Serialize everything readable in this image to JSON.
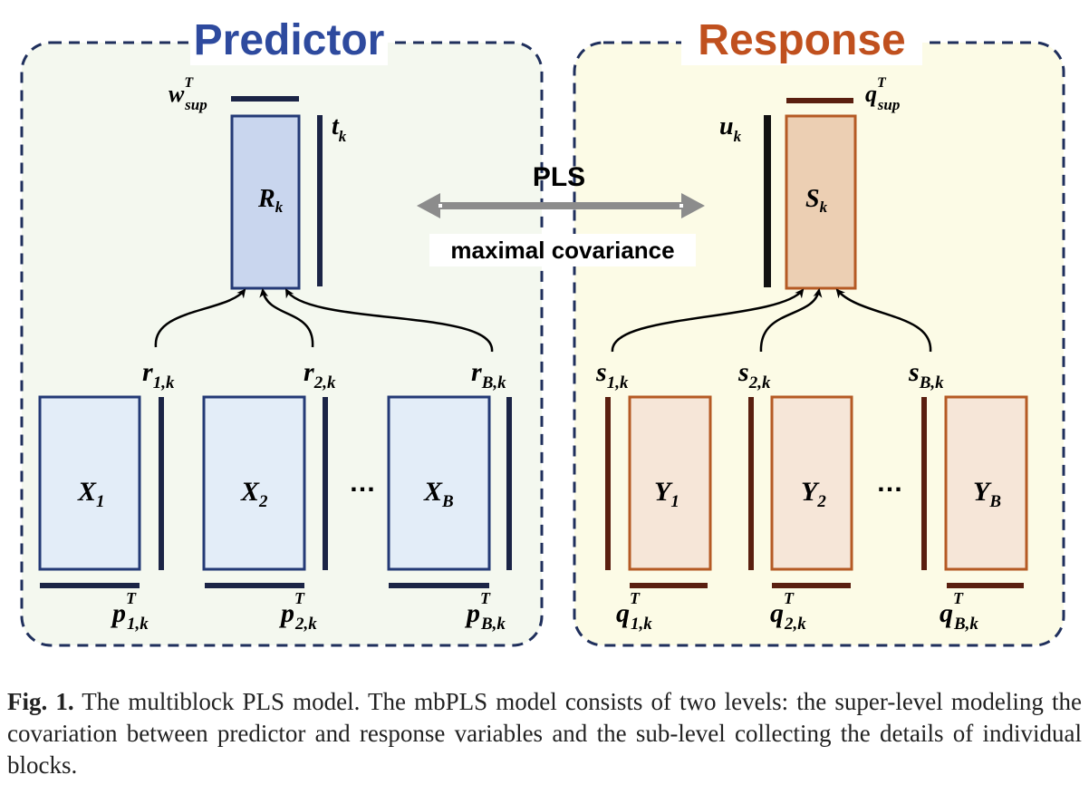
{
  "predictor": {
    "title": "Predictor",
    "super": {
      "block": "R",
      "block_sub": "k",
      "weight": "w",
      "weight_sup": "T",
      "weight_sub": "sup",
      "score": "t",
      "score_sub": "k"
    },
    "blocks": [
      {
        "label": "X",
        "sub": "1",
        "score": "r",
        "score_sub": "1,k",
        "loading": "p",
        "loading_sup": "T",
        "loading_sub": "1,k"
      },
      {
        "label": "X",
        "sub": "2",
        "score": "r",
        "score_sub": "2,k",
        "loading": "p",
        "loading_sup": "T",
        "loading_sub": "2,k"
      },
      {
        "label": "X",
        "sub": "B",
        "score": "r",
        "score_sub": "B,k",
        "loading": "p",
        "loading_sup": "T",
        "loading_sub": "B,k"
      }
    ],
    "ellipsis": "…"
  },
  "response": {
    "title": "Response",
    "super": {
      "block": "S",
      "block_sub": "k",
      "weight": "q",
      "weight_sup": "T",
      "weight_sub": "sup",
      "score": "u",
      "score_sub": "k"
    },
    "blocks": [
      {
        "label": "Y",
        "sub": "1",
        "score": "s",
        "score_sub": "1,k",
        "loading": "q",
        "loading_sup": "T",
        "loading_sub": "1,k"
      },
      {
        "label": "Y",
        "sub": "2",
        "score": "s",
        "score_sub": "2,k",
        "loading": "q",
        "loading_sup": "T",
        "loading_sub": "2,k"
      },
      {
        "label": "Y",
        "sub": "B",
        "score": "s",
        "score_sub": "B,k",
        "loading": "q",
        "loading_sup": "T",
        "loading_sub": "B,k"
      }
    ],
    "ellipsis": "…"
  },
  "link": {
    "label_top": "PLS",
    "label_bottom": "maximal covariance"
  },
  "caption": {
    "label": "Fig. 1.",
    "text": " The multiblock PLS model. The mbPLS model consists of two levels: the super-level modeling the covariation between predictor and response variables and the sub-level collecting the details of individual blocks."
  },
  "colors": {
    "panel_border": "#1f2f5c",
    "predictor_title": "#2e4a9e",
    "response_title": "#c0501e",
    "predictor_panel_bg": "#f4f8ef",
    "response_panel_bg": "#fcfbe6",
    "x_block_fill": "#e3edf8",
    "x_block_stroke": "#243a76",
    "r_block_fill": "#c9d6ee",
    "y_block_fill": "#f6e6d8",
    "y_block_stroke": "#b55a24",
    "s_block_fill": "#eccfb3",
    "navy_bar": "#1b2446",
    "brown_bar": "#5a1f10",
    "black_bar": "#111111",
    "arrow_grey": "#8c8c8c"
  }
}
